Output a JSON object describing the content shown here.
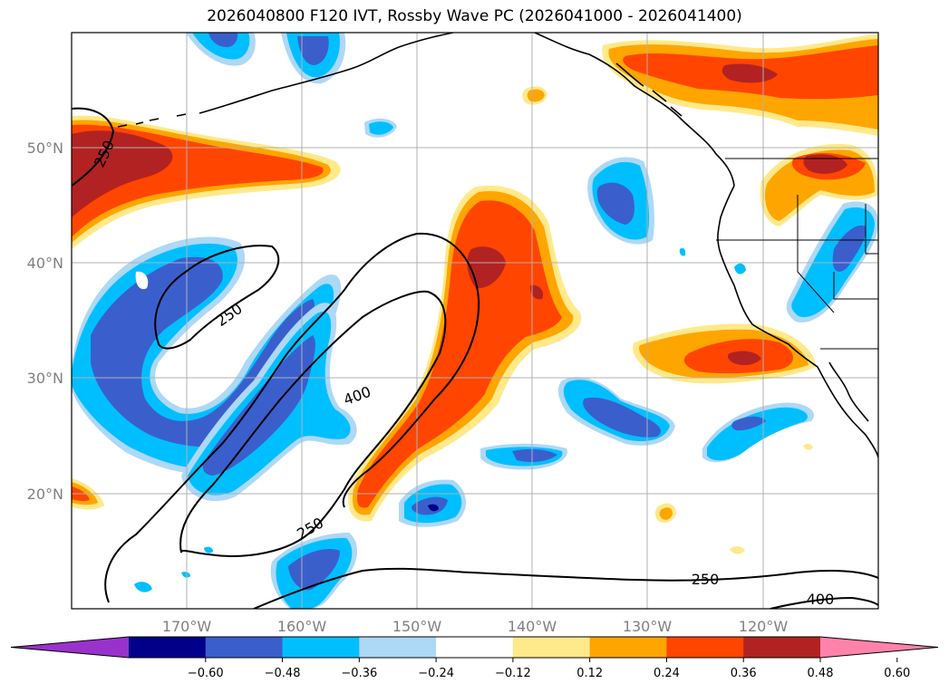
{
  "title": "2026040800 F120 IVT, Rossby Wave PC (2026041000 - 2026041400)",
  "map": {
    "lon_min": -180,
    "lon_max": -110,
    "lat_min": 10,
    "lat_max": 60,
    "lat_labels": [
      "20°N",
      "30°N",
      "40°N",
      "50°N"
    ],
    "lat_values": [
      20,
      30,
      40,
      50
    ],
    "lon_labels": [
      "170°W",
      "160°W",
      "150°W",
      "140°W",
      "130°W",
      "120°W"
    ],
    "lon_values": [
      -170,
      -160,
      -150,
      -140,
      -130,
      -120
    ],
    "gridlines": true
  },
  "contours": {
    "levels": [
      250,
      400
    ],
    "labels": [
      {
        "text": "250",
        "lon": -178,
        "lat": 48
      },
      {
        "text": "250",
        "lon": -164,
        "lat": 35
      },
      {
        "text": "400",
        "lon": -152,
        "lat": 28
      },
      {
        "text": "250",
        "lon": -158,
        "lat": 17
      },
      {
        "text": "250",
        "lon": -125,
        "lat": 12.5
      },
      {
        "text": "400",
        "lon": -115,
        "lat": 11
      }
    ]
  },
  "colorbar": {
    "ticks": [
      "−0.60",
      "−0.48",
      "−0.36",
      "−0.24",
      "−0.12",
      "0.12",
      "0.24",
      "0.36",
      "0.48",
      "0.60"
    ],
    "colors": [
      "#9932CC",
      "#00008B",
      "#3A5FCD",
      "#00BFFF",
      "#ADD8F6",
      "#FFFFFF",
      "#FFE98A",
      "#FFA500",
      "#FF4500",
      "#B22222",
      "#FF82AB"
    ],
    "extend": "both"
  },
  "colors": {
    "ocean": "#FFFFFF",
    "coast": "#000000",
    "grid": "#B0B0B0",
    "tick_label": "#808080"
  }
}
